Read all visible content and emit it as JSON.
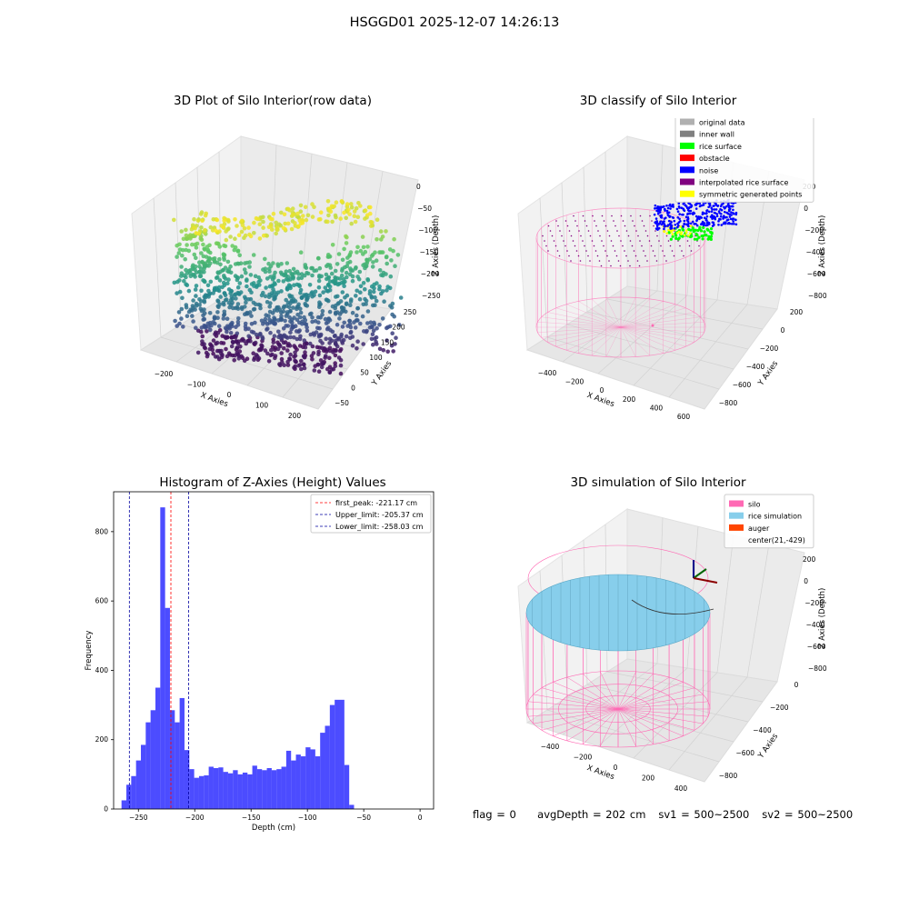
{
  "suptitle": "HSGGD01 2025-12-07 14:26:13",
  "footer": {
    "flag": "flag = 0",
    "avg_depth": "avgDepth = 202 cm",
    "sv1": "sv1 = 500~2500",
    "sv2": "sv2 = 500~2500"
  },
  "chart_data": [
    {
      "type": "scatter",
      "projection": "3d",
      "title": "3D Plot of Silo Interior(row data)",
      "xlabel": "X Axies",
      "ylabel": "Y Axies",
      "zlabel": "Z Axies (Depth)",
      "x_ticks": [
        "−200",
        "−100",
        "0",
        "100",
        "200"
      ],
      "y_ticks": [
        "−50",
        "0",
        "50",
        "100",
        "150",
        "200",
        "250"
      ],
      "z_ticks": [
        "0",
        "−50",
        "−100",
        "−150",
        "−200",
        "−250"
      ],
      "colormap": "viridis",
      "grid": true
    },
    {
      "type": "scatter",
      "projection": "3d",
      "title": "3D classify of Silo Interior",
      "xlabel": "X Axies",
      "ylabel": "Y Axies",
      "zlabel": "Z Axies (Depth)",
      "x_ticks": [
        "−400",
        "−200",
        "0",
        "200",
        "400",
        "600"
      ],
      "y_ticks": [
        "−800",
        "−600",
        "−400",
        "−200",
        "0",
        "200"
      ],
      "z_ticks": [
        "200",
        "0",
        "−200",
        "−400",
        "−600",
        "−800"
      ],
      "legend_position": "top-right",
      "legend": [
        {
          "label": "original data",
          "color": "#b0b0b0"
        },
        {
          "label": "inner wall",
          "color": "#808080"
        },
        {
          "label": "rice surface",
          "color": "#00ff00"
        },
        {
          "label": "obstacle",
          "color": "#ff0000"
        },
        {
          "label": "noise",
          "color": "#0000ff"
        },
        {
          "label": "interpolated rice surface",
          "color": "#800080"
        },
        {
          "label": "symmetric generated points",
          "color": "#ffff00"
        }
      ],
      "grid": true
    },
    {
      "type": "bar",
      "title": "Histogram of Z-Axies (Height) Values",
      "xlabel": "Depth (cm)",
      "ylabel": "Frequency",
      "xlim": [
        -272,
        12
      ],
      "ylim": [
        0,
        915
      ],
      "x_ticks": [
        -250,
        -200,
        -150,
        -100,
        -50,
        0
      ],
      "y_ticks": [
        0,
        200,
        400,
        600,
        800
      ],
      "bin_start": -265,
      "bin_width": 4.3,
      "values": [
        25,
        70,
        95,
        140,
        185,
        250,
        285,
        350,
        870,
        580,
        285,
        250,
        320,
        170,
        115,
        90,
        95,
        97,
        122,
        118,
        120,
        107,
        103,
        112,
        100,
        105,
        100,
        125,
        115,
        112,
        118,
        112,
        115,
        122,
        168,
        140,
        157,
        152,
        178,
        172,
        152,
        220,
        240,
        300,
        315,
        315,
        127,
        12
      ],
      "bar_color": "#0000ff",
      "vlines": [
        {
          "x": -221.17,
          "color": "#ff0000",
          "label": "first_peak: -221.17 cm"
        },
        {
          "x": -205.37,
          "color": "#0000a0",
          "label": "Upper_limit: -205.37 cm"
        },
        {
          "x": -258.03,
          "color": "#0000a0",
          "label": "Lower_limit: -258.03 cm"
        }
      ],
      "legend_position": "top-right"
    },
    {
      "type": "surface",
      "projection": "3d",
      "title": "3D simulation of Silo Interior",
      "xlabel": "X Axies",
      "ylabel": "Y Axies",
      "zlabel": "Z Axies (Depth)",
      "x_ticks": [
        "−400",
        "−200",
        "0",
        "200",
        "400"
      ],
      "y_ticks": [
        "−800",
        "−600",
        "−400",
        "−200",
        "0"
      ],
      "z_ticks": [
        "200",
        "0",
        "−200",
        "−400",
        "−600",
        "−800"
      ],
      "legend_position": "top-right",
      "legend": [
        {
          "label": "silo",
          "color": "#ff69b4"
        },
        {
          "label": "rice simulation",
          "color": "#87ceeb"
        },
        {
          "label": "auger",
          "color": "#ff4500"
        },
        {
          "label": "center(21,-429)",
          "color": ""
        }
      ],
      "grid": true
    }
  ]
}
